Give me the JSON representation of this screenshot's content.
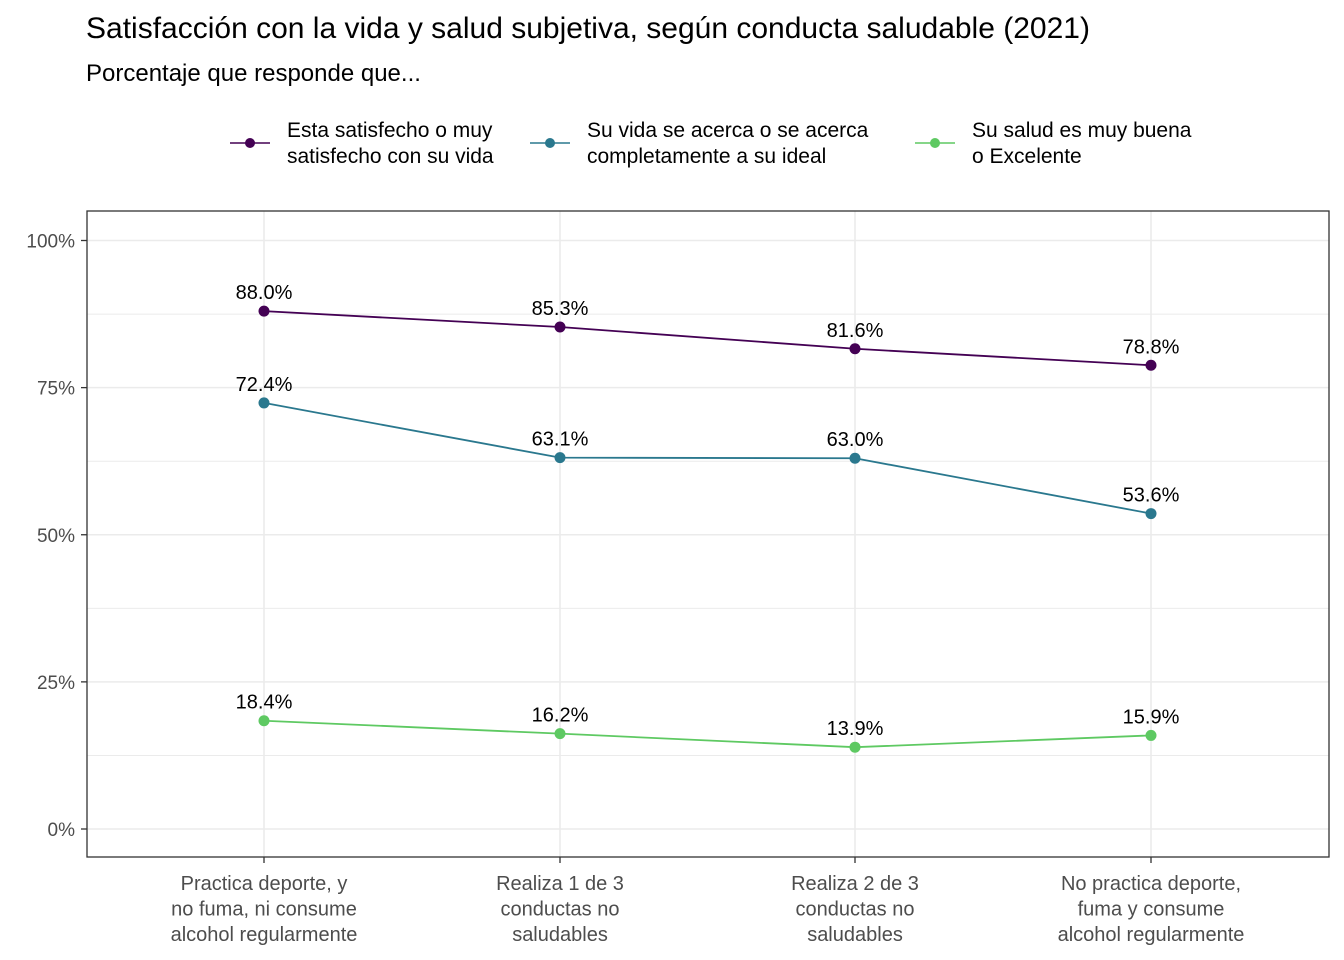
{
  "header": {
    "title": "Satisfacción con la vida y salud subjetiva, según conducta saludable (2021)",
    "subtitle": "Porcentaje que responde que..."
  },
  "chart_data": {
    "type": "line",
    "title": "Satisfacción con la vida y salud subjetiva, según conducta saludable (2021)",
    "subtitle": "Porcentaje que responde que...",
    "xlabel": "",
    "ylabel": "",
    "categories": [
      [
        "Practica deporte, y",
        "no fuma, ni consume",
        "alcohol regularmente"
      ],
      [
        "Realiza 1 de 3",
        "conductas no",
        "saludables"
      ],
      [
        "Realiza 2 de 3",
        "conductas no",
        "saludables"
      ],
      [
        "No practica deporte,",
        "fuma y consume",
        "alcohol regularmente"
      ]
    ],
    "ylim": [
      0,
      100
    ],
    "yticks": [
      0,
      25,
      50,
      75,
      100
    ],
    "ytick_labels": [
      "0%",
      "25%",
      "50%",
      "75%",
      "100%"
    ],
    "grid": true,
    "legend_position": "top",
    "series": [
      {
        "name": [
          "Esta satisfecho o muy",
          "satisfecho con su vida"
        ],
        "color": "#440154",
        "values": [
          88.0,
          85.3,
          81.6,
          78.8
        ],
        "labels": [
          "88.0%",
          "85.3%",
          "81.6%",
          "78.8%"
        ]
      },
      {
        "name": [
          "Su vida se acerca o se acerca",
          "completamente a su ideal"
        ],
        "color": "#2a788e",
        "values": [
          72.4,
          63.1,
          63.0,
          53.6
        ],
        "labels": [
          "72.4%",
          "63.1%",
          "63.0%",
          "53.6%"
        ]
      },
      {
        "name": [
          "Su salud es muy buena",
          "o Excelente"
        ],
        "color": "#5ec962",
        "values": [
          18.4,
          16.2,
          13.9,
          15.9
        ],
        "labels": [
          "18.4%",
          "16.2%",
          "13.9%",
          "15.9%"
        ]
      }
    ]
  }
}
